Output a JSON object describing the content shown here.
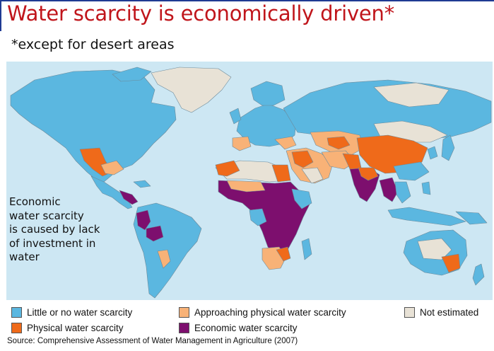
{
  "slide": {
    "title": "Water scarcity is economically driven*",
    "subtitle": "*except for desert areas",
    "annotation": "Economic\nwater scarcity\nis caused by lack\nof investment in\nwater",
    "source": "Source: Comprehensive Assessment of Water Management in Agriculture (2007)"
  },
  "colors": {
    "ocean": "#cde7f3",
    "little": "#5bb7e0",
    "approaching": "#f8b277",
    "physical": "#ef6a1a",
    "economic": "#7d0f6e",
    "not_estimated": "#e8e2d6"
  },
  "legend": [
    {
      "label": "Little or no water scarcity",
      "color": "#5bb7e0"
    },
    {
      "label": "Approaching physical water scarcity",
      "color": "#f8b277"
    },
    {
      "label": "Not estimated",
      "color": "#e8e2d6"
    },
    {
      "label": "Physical water scarcity",
      "color": "#ef6a1a"
    },
    {
      "label": "Economic water scarcity",
      "color": "#7d0f6e"
    }
  ]
}
